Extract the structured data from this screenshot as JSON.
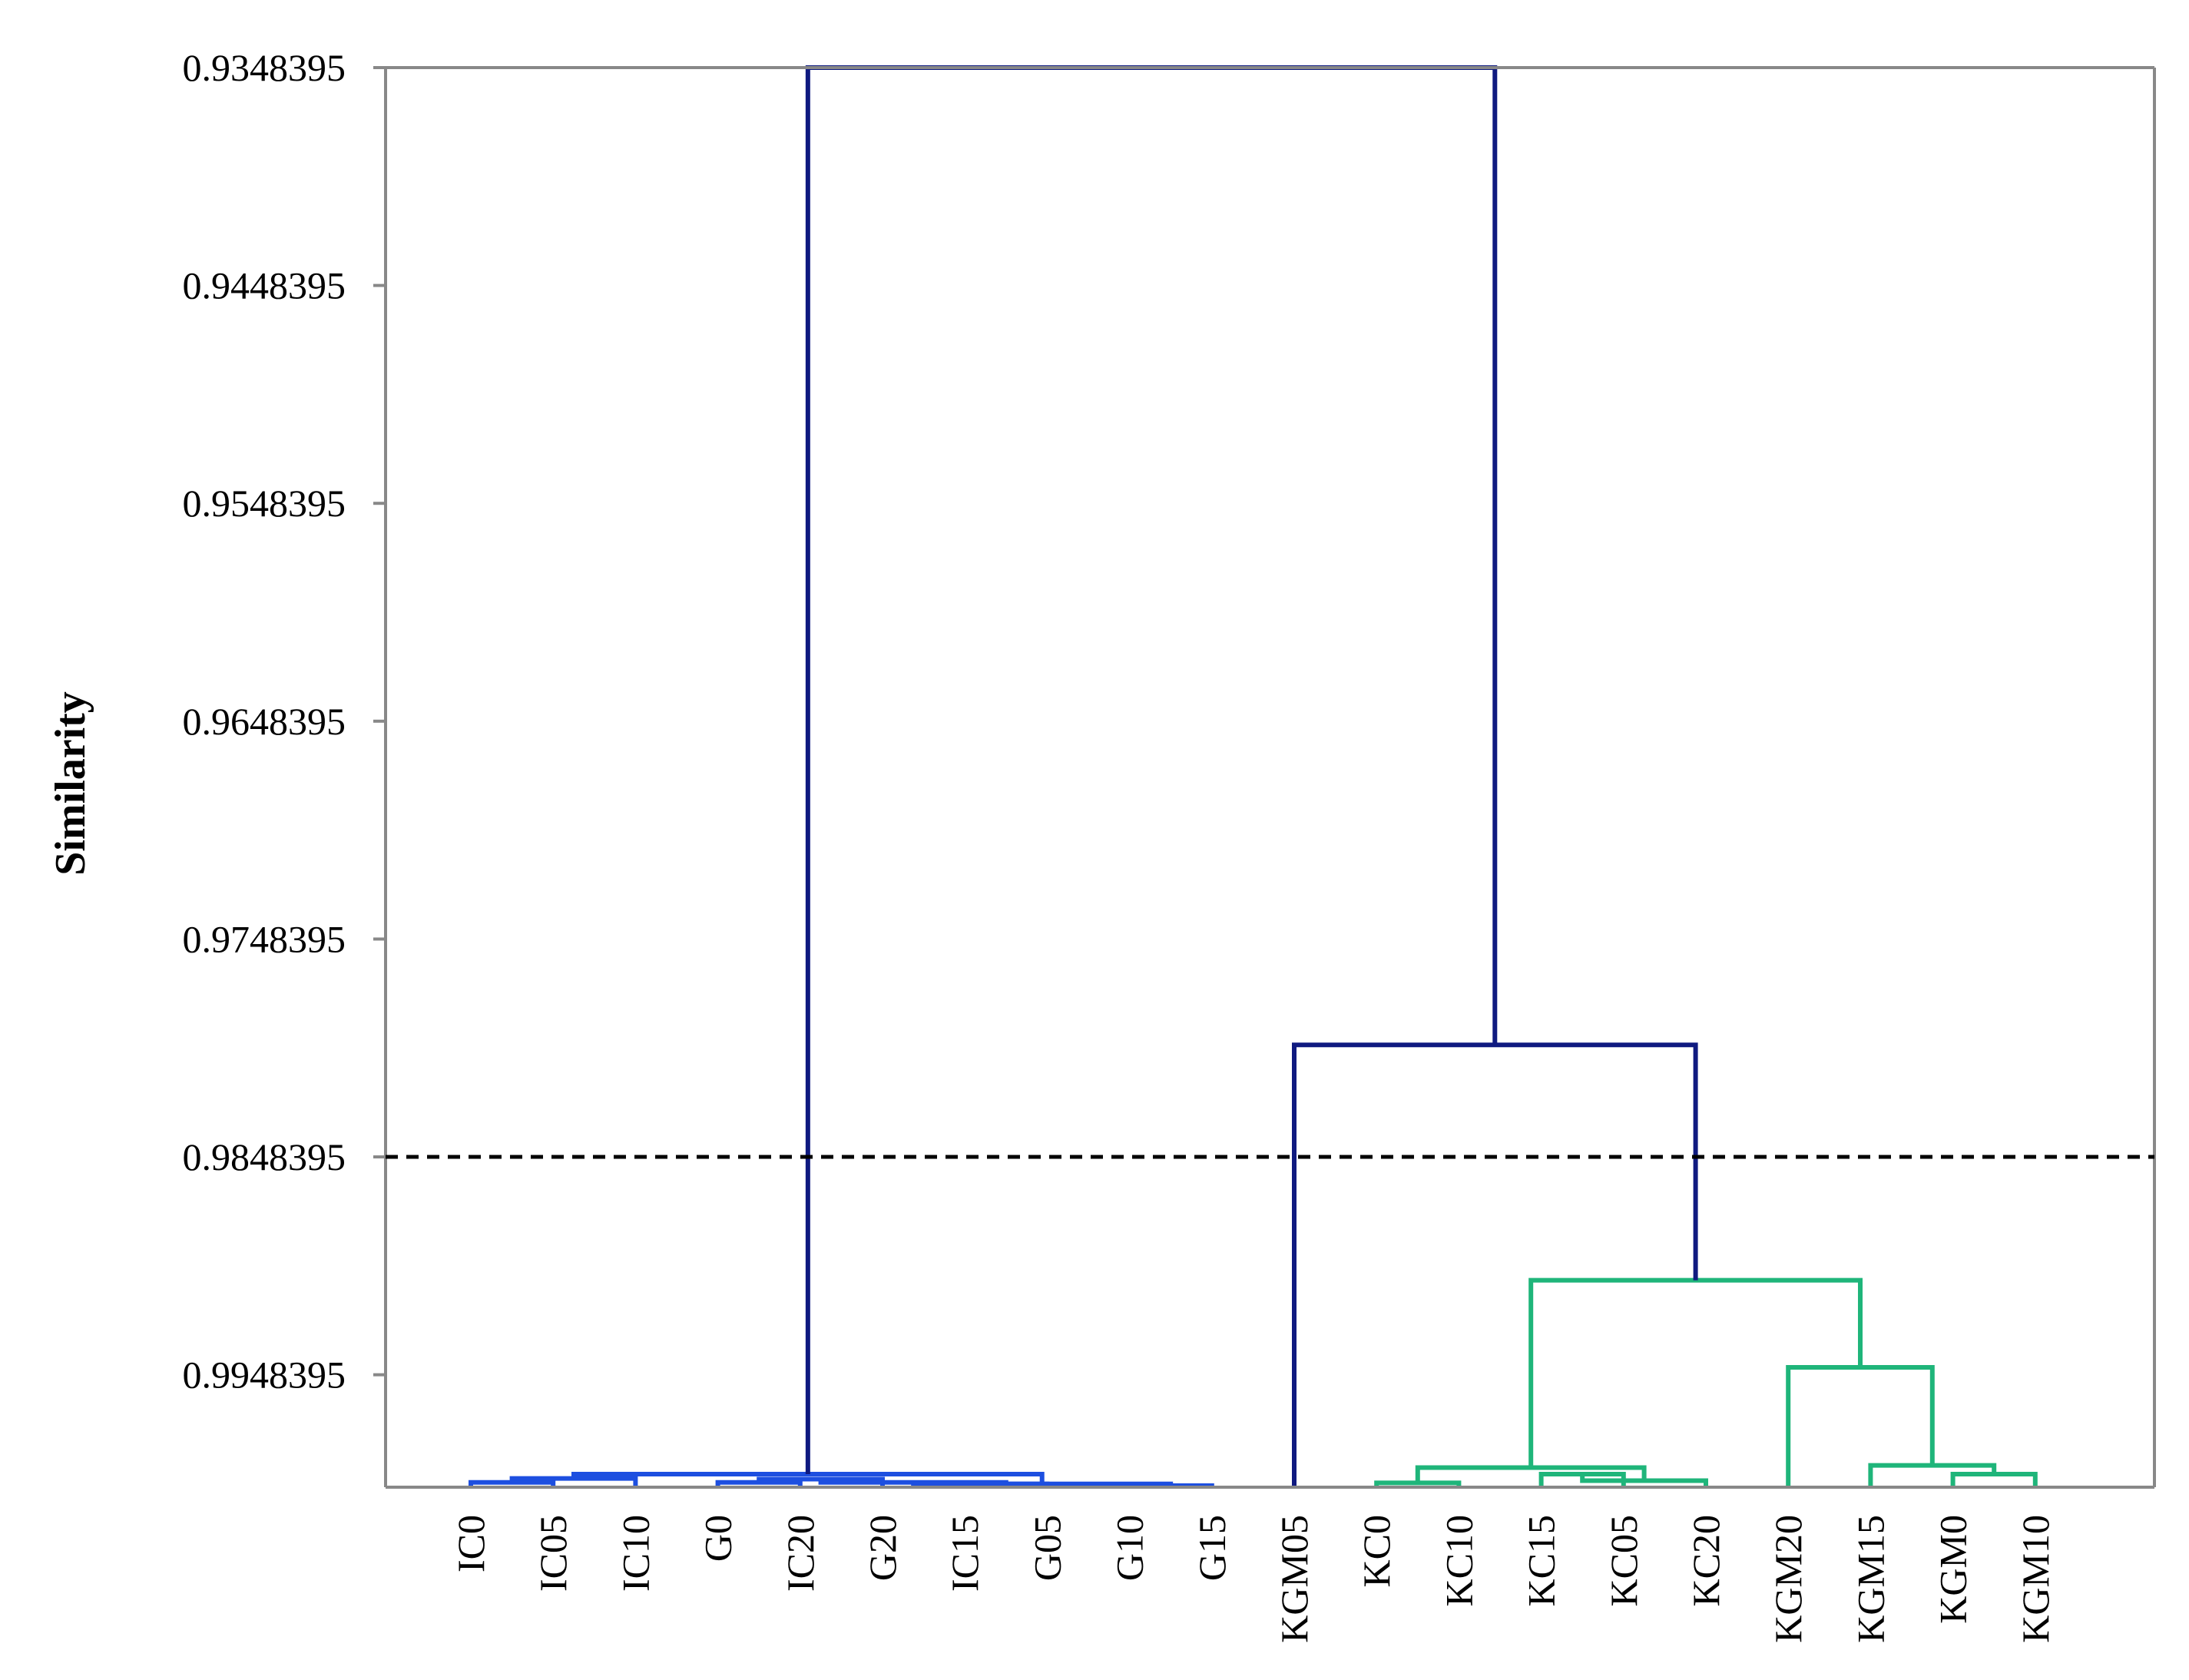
{
  "chart_data": {
    "type": "dendrogram",
    "ylabel": "Similarity",
    "ylim": [
      0.9348395,
      1.0
    ],
    "y_ticks": [
      "0.9348395",
      "0.9448395",
      "0.9548395",
      "0.9648395",
      "0.9748395",
      "0.9848395",
      "0.9948395"
    ],
    "cut_threshold": 0.9848395,
    "leaves": [
      "IC0",
      "IC05",
      "IC10",
      "G0",
      "IC20",
      "G20",
      "IC15",
      "G05",
      "G10",
      "G15",
      "KGM05",
      "KC0",
      "KC10",
      "KC15",
      "KC05",
      "KC20",
      "KGM20",
      "KGM15",
      "KGM0",
      "KGM10"
    ],
    "merges": [
      {
        "id": "a",
        "children": [
          "IC0",
          "IC05"
        ],
        "similarity": 0.99978,
        "cluster": "blue"
      },
      {
        "id": "b",
        "children": [
          "a",
          "IC10"
        ],
        "similarity": 0.9996,
        "cluster": "blue"
      },
      {
        "id": "c",
        "children": [
          "G0",
          "IC20"
        ],
        "similarity": 0.99978,
        "cluster": "blue"
      },
      {
        "id": "d",
        "children": [
          "c",
          "G20"
        ],
        "similarity": 0.99963,
        "cluster": "blue"
      },
      {
        "id": "e",
        "children": [
          "IC15",
          "G05"
        ],
        "similarity": 0.99985,
        "cluster": "blue"
      },
      {
        "id": "f",
        "children": [
          "d",
          "e"
        ],
        "similarity": 0.99978,
        "cluster": "blue"
      },
      {
        "id": "g",
        "children": [
          "G10",
          "G15"
        ],
        "similarity": 0.99993,
        "cluster": "blue"
      },
      {
        "id": "h",
        "children": [
          "f",
          "g"
        ],
        "similarity": 0.99985,
        "cluster": "blue"
      },
      {
        "id": "i",
        "children": [
          "b",
          "h"
        ],
        "similarity": 0.9994,
        "cluster": "blue"
      },
      {
        "id": "j",
        "children": [
          "KC0",
          "KC10"
        ],
        "similarity": 0.9998,
        "cluster": "green"
      },
      {
        "id": "k",
        "children": [
          "KC15",
          "KC05"
        ],
        "similarity": 0.9994,
        "cluster": "green"
      },
      {
        "id": "l",
        "children": [
          "k",
          "KC20"
        ],
        "similarity": 0.9997,
        "cluster": "green"
      },
      {
        "id": "m",
        "children": [
          "j",
          "l"
        ],
        "similarity": 0.9991,
        "cluster": "green"
      },
      {
        "id": "n",
        "children": [
          "KGM0",
          "KGM10"
        ],
        "similarity": 0.9994,
        "cluster": "green"
      },
      {
        "id": "o",
        "children": [
          "KGM15",
          "n"
        ],
        "similarity": 0.999,
        "cluster": "green"
      },
      {
        "id": "p",
        "children": [
          "KGM20",
          "o"
        ],
        "similarity": 0.9945,
        "cluster": "green"
      },
      {
        "id": "q",
        "children": [
          "m",
          "p"
        ],
        "similarity": 0.9905,
        "cluster": "green"
      },
      {
        "id": "r",
        "children": [
          "KGM05",
          "q"
        ],
        "similarity": 0.9797,
        "cluster": "navy"
      },
      {
        "id": "root",
        "children": [
          "i",
          "r"
        ],
        "similarity": 0.9348395,
        "cluster": "navy"
      }
    ],
    "colors": {
      "navy": "#0f1a80",
      "blue": "#1d4fe0",
      "green": "#1fb57a",
      "axis": "#888888",
      "threshold": "#000000"
    }
  }
}
